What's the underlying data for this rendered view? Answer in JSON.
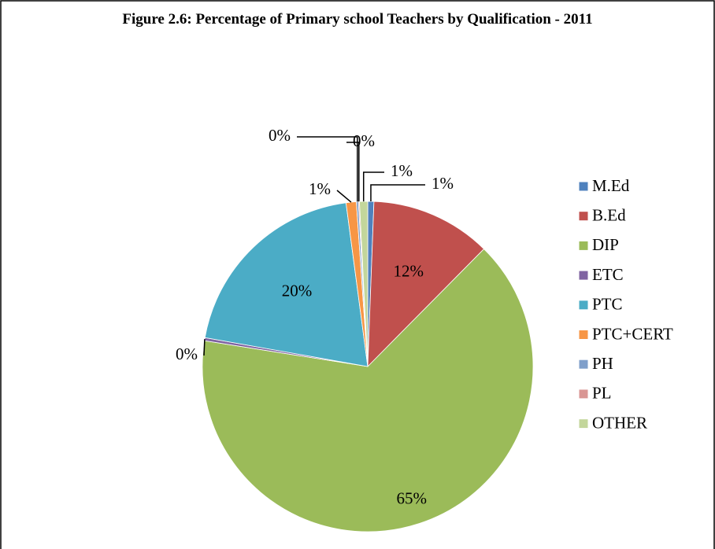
{
  "chart_data": {
    "type": "pie",
    "title": "Figure 2.6: Percentage of Primary school Teachers by Qualification - 2011",
    "categories": [
      "M.Ed",
      "B.Ed",
      "DIP",
      "ETC",
      "PTC",
      "PTC+CERT",
      "PH",
      "PL",
      "OTHER"
    ],
    "values": [
      0.6,
      11.8,
      65.1,
      0.3,
      20.1,
      1.0,
      0.2,
      0.1,
      0.8
    ],
    "value_labels": [
      "1%",
      "12%",
      "65%",
      "0%",
      "20%",
      "1%",
      "0%",
      "0%",
      "1%"
    ],
    "colors": [
      "#4f81bd",
      "#c0504d",
      "#9bbb59",
      "#8064a2",
      "#4bacc6",
      "#f79646",
      "#7f9fca",
      "#d99694",
      "#c3d69b"
    ],
    "legend": "right"
  }
}
